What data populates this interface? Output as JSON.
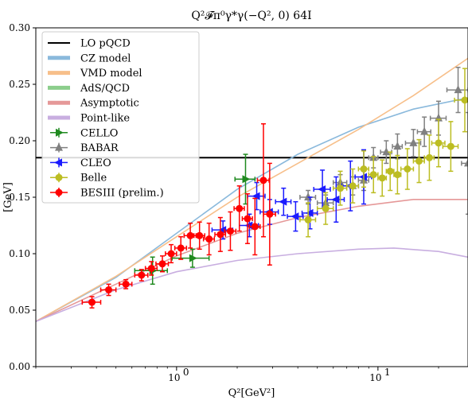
{
  "chart_data": {
    "type": "scatter",
    "title": "Q²𝓕π⁰γ*γ(−Q², 0) 64I",
    "xlabel": "Q²[GeV²]",
    "ylabel": "[GeV]",
    "xscale": "log",
    "xlim": [
      0.2,
      28
    ],
    "ylim": [
      0.0,
      0.3
    ],
    "y_ticks": [
      "0.00",
      "0.05",
      "0.10",
      "0.15",
      "0.20",
      "0.25",
      "0.30"
    ],
    "x_ticks": [
      {
        "value": 1,
        "base": "10",
        "exp": "0"
      },
      {
        "value": 10,
        "base": "10",
        "exp": "1"
      }
    ],
    "legend_position": "upper-left",
    "lines": [
      {
        "name": "LO pQCD",
        "color": "#000000",
        "width": 2,
        "points": [
          [
            0.2,
            0.185
          ],
          [
            28,
            0.185
          ]
        ]
      },
      {
        "name": "CZ model",
        "color": "#8ab9dc",
        "width": 1.6,
        "points": [
          [
            0.2,
            0.04
          ],
          [
            0.5,
            0.079
          ],
          [
            1.0,
            0.118
          ],
          [
            2.0,
            0.157
          ],
          [
            4.0,
            0.188
          ],
          [
            8.0,
            0.212
          ],
          [
            15.0,
            0.228
          ],
          [
            28.0,
            0.238
          ]
        ]
      },
      {
        "name": "VMD model",
        "color": "#f7bf8a",
        "width": 1.6,
        "points": [
          [
            0.2,
            0.04
          ],
          [
            0.5,
            0.08
          ],
          [
            1.0,
            0.115
          ],
          [
            2.0,
            0.15
          ],
          [
            4.0,
            0.18
          ],
          [
            8.0,
            0.21
          ],
          [
            15.0,
            0.24
          ],
          [
            28.0,
            0.273
          ]
        ]
      },
      {
        "name": "AdS/QCD",
        "color": "#8cce8c",
        "width": 1.6,
        "points": []
      },
      {
        "name": "Asymptotic",
        "color": "#e59898",
        "width": 1.6,
        "points": [
          [
            0.2,
            0.04
          ],
          [
            0.5,
            0.073
          ],
          [
            1.0,
            0.098
          ],
          [
            2.0,
            0.118
          ],
          [
            4.0,
            0.132
          ],
          [
            8.0,
            0.142
          ],
          [
            15.0,
            0.148
          ],
          [
            28.0,
            0.148
          ]
        ]
      },
      {
        "name": "Point-like",
        "color": "#c8aee0",
        "width": 1.6,
        "points": [
          [
            0.2,
            0.04
          ],
          [
            0.5,
            0.068
          ],
          [
            1.0,
            0.084
          ],
          [
            2.0,
            0.094
          ],
          [
            4.0,
            0.1
          ],
          [
            8.0,
            0.104
          ],
          [
            12.0,
            0.105
          ],
          [
            20.0,
            0.102
          ],
          [
            28.0,
            0.097
          ]
        ]
      }
    ],
    "series": [
      {
        "name": "CELLO",
        "color": "#1f8a1f",
        "marker": "triangle-right",
        "points": [
          {
            "x": 0.76,
            "y": 0.085,
            "xerr": 0.14,
            "yerr": 0.012
          },
          {
            "x": 1.2,
            "y": 0.096,
            "xerr": 0.25,
            "yerr": 0.008
          },
          {
            "x": 2.2,
            "y": 0.166,
            "xerr": 0.25,
            "yerr": 0.022
          }
        ]
      },
      {
        "name": "BABAR",
        "color": "#808080",
        "marker": "triangle-up",
        "points": [
          {
            "x": 4.5,
            "y": 0.15,
            "xerr": 0.4,
            "yerr": 0.006
          },
          {
            "x": 5.5,
            "y": 0.145,
            "xerr": 0.5,
            "yerr": 0.007
          },
          {
            "x": 6.5,
            "y": 0.163,
            "xerr": 0.5,
            "yerr": 0.007
          },
          {
            "x": 7.5,
            "y": 0.16,
            "xerr": 0.5,
            "yerr": 0.008
          },
          {
            "x": 8.5,
            "y": 0.165,
            "xerr": 0.5,
            "yerr": 0.009
          },
          {
            "x": 9.5,
            "y": 0.185,
            "xerr": 0.5,
            "yerr": 0.009
          },
          {
            "x": 11.0,
            "y": 0.19,
            "xerr": 0.7,
            "yerr": 0.01
          },
          {
            "x": 12.5,
            "y": 0.195,
            "xerr": 0.7,
            "yerr": 0.011
          },
          {
            "x": 15.0,
            "y": 0.198,
            "xerr": 1.3,
            "yerr": 0.012
          },
          {
            "x": 17.0,
            "y": 0.208,
            "xerr": 1.3,
            "yerr": 0.013
          },
          {
            "x": 20.0,
            "y": 0.22,
            "xerr": 1.8,
            "yerr": 0.015
          },
          {
            "x": 25.0,
            "y": 0.245,
            "xerr": 3.0,
            "yerr": 0.02
          },
          {
            "x": 28.0,
            "y": 0.18,
            "xerr": 2.0,
            "yerr": 0.045
          }
        ]
      },
      {
        "name": "CLEO",
        "color": "#1a1aff",
        "marker": "triangle-left",
        "points": [
          {
            "x": 1.7,
            "y": 0.121,
            "xerr": 0.2,
            "yerr": 0.008
          },
          {
            "x": 2.3,
            "y": 0.125,
            "xerr": 0.25,
            "yerr": 0.01
          },
          {
            "x": 2.5,
            "y": 0.151,
            "xerr": 0.25,
            "yerr": 0.012
          },
          {
            "x": 2.9,
            "y": 0.137,
            "xerr": 0.3,
            "yerr": 0.011
          },
          {
            "x": 3.4,
            "y": 0.146,
            "xerr": 0.3,
            "yerr": 0.012
          },
          {
            "x": 3.9,
            "y": 0.133,
            "xerr": 0.35,
            "yerr": 0.013
          },
          {
            "x": 4.6,
            "y": 0.136,
            "xerr": 0.4,
            "yerr": 0.014
          },
          {
            "x": 5.3,
            "y": 0.157,
            "xerr": 0.5,
            "yerr": 0.017
          },
          {
            "x": 6.2,
            "y": 0.148,
            "xerr": 0.6,
            "yerr": 0.02
          },
          {
            "x": 7.3,
            "y": 0.16,
            "xerr": 0.7,
            "yerr": 0.022
          },
          {
            "x": 8.5,
            "y": 0.168,
            "xerr": 0.8,
            "yerr": 0.024
          }
        ]
      },
      {
        "name": "Belle",
        "color": "#bcbd22",
        "marker": "circle",
        "points": [
          {
            "x": 4.5,
            "y": 0.13,
            "xerr": 0.4,
            "yerr": 0.015
          },
          {
            "x": 5.5,
            "y": 0.14,
            "xerr": 0.5,
            "yerr": 0.014
          },
          {
            "x": 6.5,
            "y": 0.158,
            "xerr": 0.5,
            "yerr": 0.015
          },
          {
            "x": 7.5,
            "y": 0.16,
            "xerr": 0.5,
            "yerr": 0.015
          },
          {
            "x": 8.5,
            "y": 0.175,
            "xerr": 0.5,
            "yerr": 0.016
          },
          {
            "x": 9.5,
            "y": 0.17,
            "xerr": 0.5,
            "yerr": 0.016
          },
          {
            "x": 10.5,
            "y": 0.167,
            "xerr": 0.5,
            "yerr": 0.016
          },
          {
            "x": 11.5,
            "y": 0.173,
            "xerr": 0.5,
            "yerr": 0.017
          },
          {
            "x": 12.5,
            "y": 0.17,
            "xerr": 0.5,
            "yerr": 0.017
          },
          {
            "x": 14.0,
            "y": 0.175,
            "xerr": 1.0,
            "yerr": 0.018
          },
          {
            "x": 16.0,
            "y": 0.182,
            "xerr": 1.0,
            "yerr": 0.019
          },
          {
            "x": 18.0,
            "y": 0.185,
            "xerr": 1.0,
            "yerr": 0.02
          },
          {
            "x": 20.0,
            "y": 0.198,
            "xerr": 1.5,
            "yerr": 0.021
          },
          {
            "x": 23.0,
            "y": 0.195,
            "xerr": 2.0,
            "yerr": 0.022
          },
          {
            "x": 27.0,
            "y": 0.236,
            "xerr": 3.0,
            "yerr": 0.028
          }
        ]
      },
      {
        "name": "BESIII (prelim.)",
        "color": "#ff0000",
        "marker": "circle",
        "points": [
          {
            "x": 0.38,
            "y": 0.057,
            "xerr": 0.04,
            "yerr": 0.005
          },
          {
            "x": 0.46,
            "y": 0.068,
            "xerr": 0.04,
            "yerr": 0.005
          },
          {
            "x": 0.56,
            "y": 0.073,
            "xerr": 0.04,
            "yerr": 0.004
          },
          {
            "x": 0.67,
            "y": 0.081,
            "xerr": 0.05,
            "yerr": 0.005
          },
          {
            "x": 0.75,
            "y": 0.087,
            "xerr": 0.05,
            "yerr": 0.006
          },
          {
            "x": 0.85,
            "y": 0.091,
            "xerr": 0.06,
            "yerr": 0.007
          },
          {
            "x": 0.94,
            "y": 0.1,
            "xerr": 0.06,
            "yerr": 0.008
          },
          {
            "x": 1.05,
            "y": 0.105,
            "xerr": 0.07,
            "yerr": 0.01
          },
          {
            "x": 1.17,
            "y": 0.116,
            "xerr": 0.08,
            "yerr": 0.011
          },
          {
            "x": 1.3,
            "y": 0.116,
            "xerr": 0.08,
            "yerr": 0.012
          },
          {
            "x": 1.45,
            "y": 0.113,
            "xerr": 0.09,
            "yerr": 0.014
          },
          {
            "x": 1.65,
            "y": 0.117,
            "xerr": 0.1,
            "yerr": 0.015
          },
          {
            "x": 1.85,
            "y": 0.12,
            "xerr": 0.12,
            "yerr": 0.017
          },
          {
            "x": 2.05,
            "y": 0.14,
            "xerr": 0.12,
            "yerr": 0.02
          },
          {
            "x": 2.25,
            "y": 0.131,
            "xerr": 0.13,
            "yerr": 0.022
          },
          {
            "x": 2.45,
            "y": 0.124,
            "xerr": 0.15,
            "yerr": 0.025
          },
          {
            "x": 2.7,
            "y": 0.165,
            "xerr": 0.18,
            "yerr": 0.05
          },
          {
            "x": 2.9,
            "y": 0.135,
            "xerr": 0.2,
            "yerr": 0.045
          }
        ]
      }
    ]
  }
}
